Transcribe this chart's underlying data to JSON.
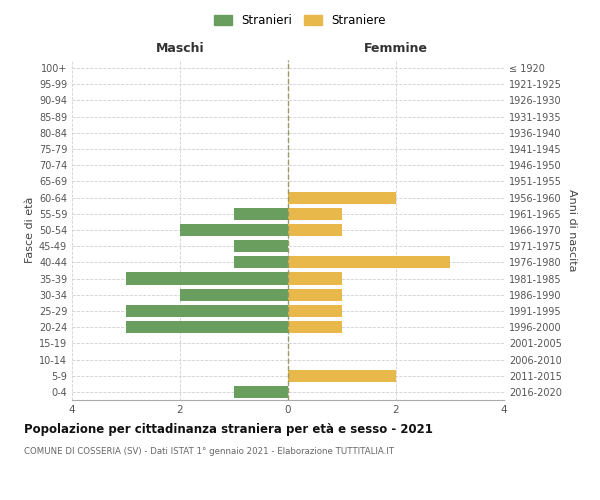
{
  "age_groups": [
    "0-4",
    "5-9",
    "10-14",
    "15-19",
    "20-24",
    "25-29",
    "30-34",
    "35-39",
    "40-44",
    "45-49",
    "50-54",
    "55-59",
    "60-64",
    "65-69",
    "70-74",
    "75-79",
    "80-84",
    "85-89",
    "90-94",
    "95-99",
    "100+"
  ],
  "birth_years": [
    "2016-2020",
    "2011-2015",
    "2006-2010",
    "2001-2005",
    "1996-2000",
    "1991-1995",
    "1986-1990",
    "1981-1985",
    "1976-1980",
    "1971-1975",
    "1966-1970",
    "1961-1965",
    "1956-1960",
    "1951-1955",
    "1946-1950",
    "1941-1945",
    "1936-1940",
    "1931-1935",
    "1926-1930",
    "1921-1925",
    "≤ 1920"
  ],
  "maschi": [
    1,
    0,
    0,
    0,
    3,
    3,
    2,
    3,
    1,
    1,
    2,
    1,
    0,
    0,
    0,
    0,
    0,
    0,
    0,
    0,
    0
  ],
  "femmine": [
    0,
    2,
    0,
    0,
    1,
    1,
    1,
    1,
    3,
    0,
    1,
    1,
    2,
    0,
    0,
    0,
    0,
    0,
    0,
    0,
    0
  ],
  "maschi_color": "#6a9e5e",
  "femmine_color": "#e8b84b",
  "title": "Popolazione per cittadinanza straniera per età e sesso - 2021",
  "subtitle": "COMUNE DI COSSERIA (SV) - Dati ISTAT 1° gennaio 2021 - Elaborazione TUTTITALIA.IT",
  "legend_maschi": "Stranieri",
  "legend_femmine": "Straniere",
  "xlabel_left": "Maschi",
  "xlabel_right": "Femmine",
  "ylabel_left": "Fasce di età",
  "ylabel_right": "Anni di nascita",
  "xlim": 4,
  "background_color": "#ffffff",
  "grid_color": "#d0d0d0",
  "axis_center_color": "#999966"
}
